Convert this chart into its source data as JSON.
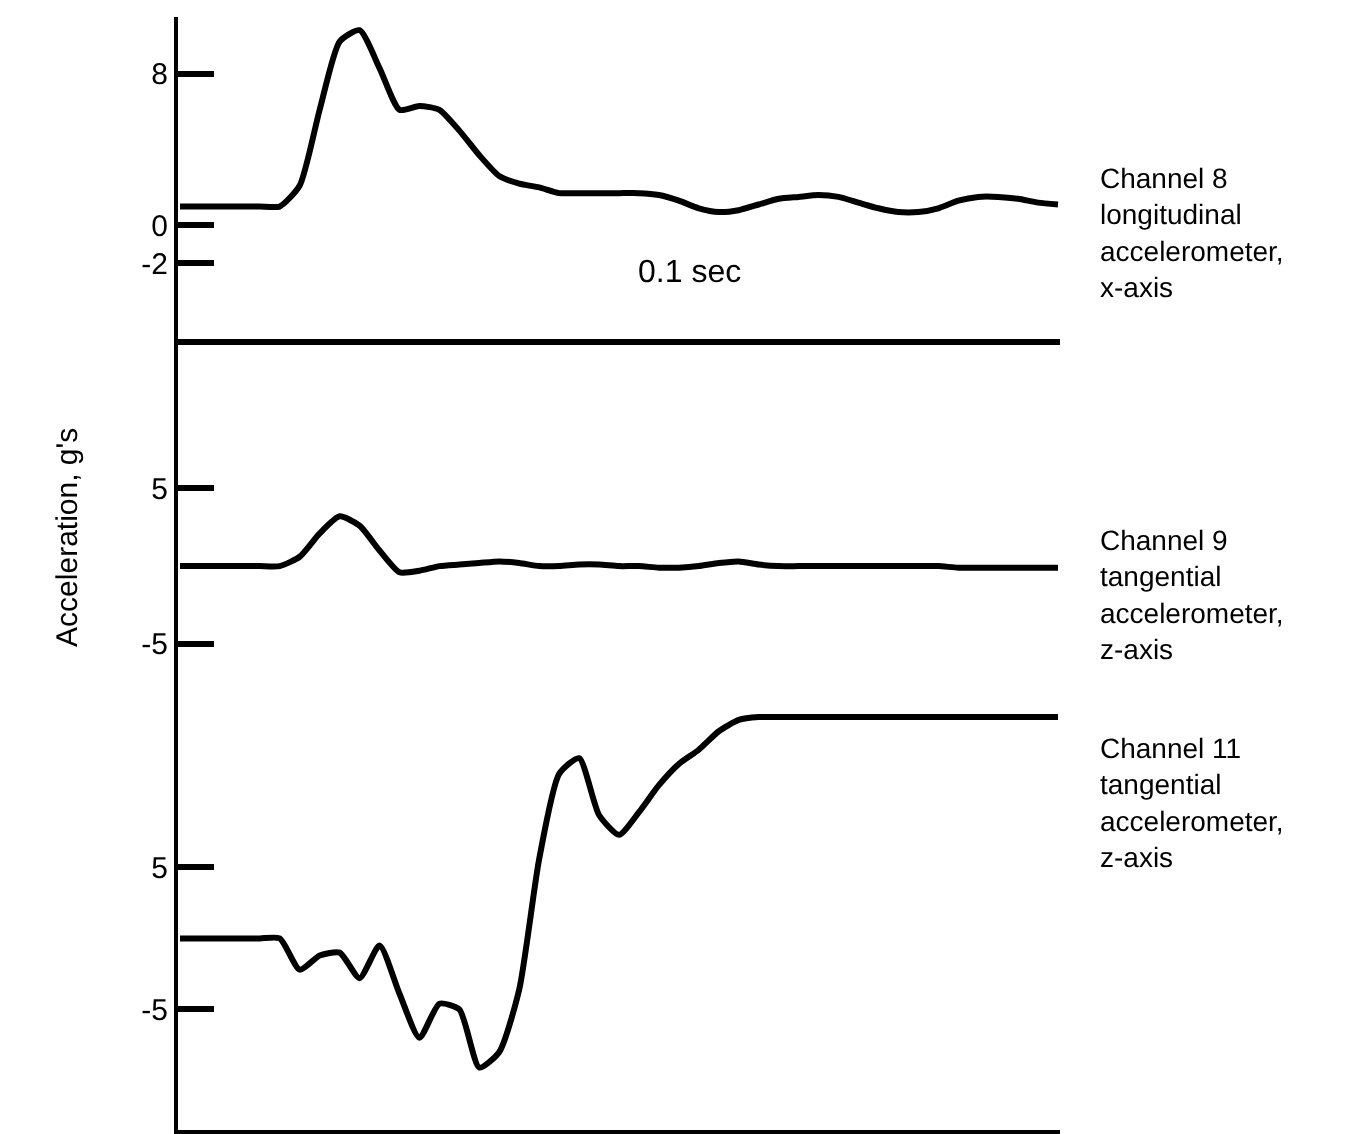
{
  "chart_data": [
    {
      "type": "line",
      "categories": [
        null,
        null,
        null,
        null,
        null,
        null,
        null,
        null,
        null,
        null,
        null,
        null,
        null,
        null,
        null,
        null,
        null,
        null,
        null,
        null,
        null,
        null,
        null,
        null,
        null,
        null,
        null,
        null,
        null,
        null,
        null,
        null,
        null,
        null,
        null,
        null,
        null,
        null,
        null,
        null,
        null,
        null,
        null,
        null,
        null
      ],
      "series": [
        {
          "color": "#000000",
          "values": [
            1.0,
            1.0,
            1.0,
            1.0,
            1.0,
            1.0,
            2.1,
            6.1,
            9.7,
            10.3,
            8.3,
            6.1,
            6.3,
            6.1,
            5.0,
            3.7,
            2.6,
            2.2,
            2.0,
            1.7,
            1.7,
            1.7,
            1.7,
            1.7,
            1.6,
            1.3,
            0.9,
            0.7,
            0.8,
            1.1,
            1.4,
            1.5,
            1.6,
            1.5,
            1.2,
            0.9,
            0.7,
            0.7,
            0.9,
            1.3,
            1.5,
            1.5,
            1.4,
            1.2,
            1.1
          ]
        }
      ],
      "ylim": [
        -6,
        11
      ],
      "yticks": [
        8,
        0,
        -2
      ],
      "tick_labels": "y",
      "marker": "none",
      "line_style": "solid",
      "annotations": [
        "Channel 8\nlongitudinal\naccelerometer,\nx-axis",
        "0.1 sec"
      ]
    },
    {
      "type": "line",
      "categories": [
        null,
        null,
        null,
        null,
        null,
        null,
        null,
        null,
        null,
        null,
        null,
        null,
        null,
        null,
        null,
        null,
        null,
        null,
        null,
        null,
        null,
        null,
        null,
        null,
        null,
        null,
        null,
        null,
        null,
        null,
        null,
        null,
        null,
        null,
        null,
        null,
        null,
        null,
        null,
        null,
        null,
        null,
        null,
        null,
        null
      ],
      "series": [
        {
          "color": "#000000",
          "values": [
            0.0,
            0.0,
            0.0,
            0.0,
            0.0,
            0.0,
            0.6,
            2.1,
            3.2,
            2.6,
            1.0,
            -0.4,
            -0.3,
            0.0,
            0.1,
            0.2,
            0.3,
            0.2,
            0.0,
            0.0,
            0.1,
            0.1,
            0.0,
            0.0,
            -0.1,
            -0.1,
            0.0,
            0.2,
            0.3,
            0.1,
            0.0,
            0.0,
            0.0,
            0.0,
            0.0,
            0.0,
            0.0,
            0.0,
            0.0,
            -0.1,
            -0.1,
            -0.1,
            -0.1,
            -0.1,
            -0.1
          ]
        }
      ],
      "ylim": [
        -10.9,
        14.6
      ],
      "yticks": [
        5,
        -5
      ],
      "tick_labels": "y",
      "marker": "none",
      "line_style": "solid",
      "ylabel": "Acceleration, g's",
      "annotations": [
        "Channel 9\ntangential\naccelerometer,\nz-axis"
      ]
    },
    {
      "type": "line",
      "categories": [
        null,
        null,
        null,
        null,
        null,
        null,
        null,
        null,
        null,
        null,
        null,
        null,
        null,
        null,
        null,
        null,
        null,
        null,
        null,
        null,
        null,
        null,
        null,
        null,
        null,
        null,
        null,
        null,
        null,
        null,
        null,
        null,
        null,
        null,
        null,
        null,
        null,
        null,
        null,
        null,
        null,
        null,
        null,
        null,
        null
      ],
      "series": [
        {
          "color": "#000000",
          "values": [
            0.0,
            0.0,
            0.0,
            0.0,
            0.0,
            0.0,
            -2.2,
            -1.2,
            -1.0,
            -2.8,
            -0.5,
            -3.9,
            -7.0,
            -4.6,
            -5.0,
            -9.1,
            -8.0,
            -3.6,
            5.6,
            11.6,
            12.7,
            8.7,
            7.3,
            8.9,
            10.8,
            12.3,
            13.3,
            14.6,
            15.4,
            15.6,
            15.6,
            15.6,
            15.6,
            15.6,
            15.6,
            15.6,
            15.6,
            15.6,
            15.6,
            15.6,
            15.6,
            15.6,
            15.6,
            15.6,
            15.6
          ]
        }
      ],
      "ylim": [
        -13.5,
        17
      ],
      "yticks": [
        5,
        -5
      ],
      "tick_labels": "y",
      "marker": "none",
      "line_style": "solid",
      "annotations": [
        "Channel 11\ntangential\naccelerometer,\nz-axis"
      ]
    }
  ]
}
